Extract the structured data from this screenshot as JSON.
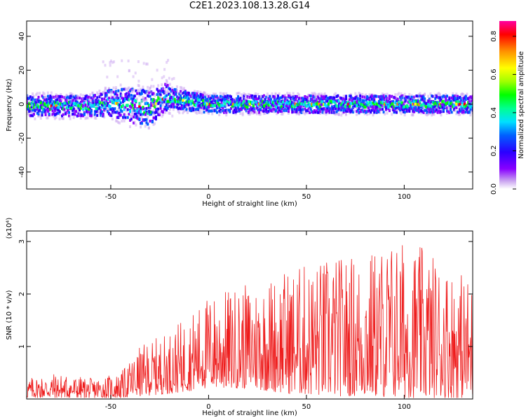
{
  "title": "C2E1.2023.108.13.28.G14",
  "chart_data": [
    {
      "type": "heatmap",
      "xlabel": "Height of straight line (km)",
      "ylabel": "Frequency (Hz)",
      "xlim": [
        -93,
        135
      ],
      "ylim": [
        -50,
        49
      ],
      "x_ticks": [
        -50,
        0,
        50,
        100
      ],
      "y_ticks": [
        -40,
        -20,
        0,
        20,
        40
      ],
      "colorbar": {
        "label": "Normalized spectral amplitude",
        "range": [
          0.0,
          0.88
        ],
        "ticks": [
          0.0,
          0.2,
          0.4,
          0.6,
          0.8
        ],
        "tick_labels": [
          "0.0",
          "0.2",
          "0.4",
          "0.6",
          "0.8"
        ],
        "colors": [
          "#ffffff",
          "#c8a0f0",
          "#8800ff",
          "#2a00ff",
          "#0060ff",
          "#00e0ff",
          "#00ff90",
          "#00ff00",
          "#a0ff00",
          "#ffff00",
          "#ff9000",
          "#ff0000",
          "#ff00a0"
        ]
      },
      "band": {
        "center_freq_hz": 0,
        "typical_halfwidth_hz": 5,
        "points": [
          {
            "x": -90,
            "center": -1,
            "halfwidth": 6
          },
          {
            "x": -60,
            "center": -1,
            "halfwidth": 6
          },
          {
            "x": -50,
            "center": 1,
            "halfwidth": 8
          },
          {
            "x": -40,
            "center": -1,
            "halfwidth": 10
          },
          {
            "x": -30,
            "center": -2,
            "halfwidth": 10
          },
          {
            "x": -22,
            "center": 4,
            "halfwidth": 8
          },
          {
            "x": -18,
            "center": 3,
            "halfwidth": 6
          },
          {
            "x": 0,
            "center": 0,
            "halfwidth": 5
          },
          {
            "x": 50,
            "center": 0,
            "halfwidth": 5
          },
          {
            "x": 100,
            "center": 0,
            "halfwidth": 5
          },
          {
            "x": 135,
            "center": 0,
            "halfwidth": 5
          }
        ]
      }
    },
    {
      "type": "line",
      "xlabel": "Height of straight line (km)",
      "ylabel": "SNR (10 * v/v)",
      "y_multiplier": "(x10⁴)",
      "xlim": [
        -93,
        135
      ],
      "ylim": [
        0,
        3.2
      ],
      "x_ticks": [
        -50,
        0,
        50,
        100
      ],
      "y_ticks": [
        1,
        2,
        3
      ],
      "color": "#ee1c1c",
      "envelope": [
        {
          "x": -93,
          "low": 0.02,
          "high": 0.4
        },
        {
          "x": -80,
          "low": 0.02,
          "high": 0.5
        },
        {
          "x": -60,
          "low": 0.02,
          "high": 0.4
        },
        {
          "x": -45,
          "low": 0.02,
          "high": 0.5
        },
        {
          "x": -35,
          "low": 0.05,
          "high": 1.0
        },
        {
          "x": -20,
          "low": 0.1,
          "high": 1.3
        },
        {
          "x": -10,
          "low": 0.15,
          "high": 1.6
        },
        {
          "x": 0,
          "low": 0.2,
          "high": 2.0
        },
        {
          "x": 20,
          "low": 0.2,
          "high": 2.2
        },
        {
          "x": 40,
          "low": 0.1,
          "high": 2.5
        },
        {
          "x": 60,
          "low": 0.05,
          "high": 2.7
        },
        {
          "x": 80,
          "low": 0.05,
          "high": 2.8
        },
        {
          "x": 95,
          "low": 0.02,
          "high": 3.1
        },
        {
          "x": 110,
          "low": 0.02,
          "high": 2.9
        },
        {
          "x": 135,
          "low": 0.02,
          "high": 2.3
        }
      ]
    }
  ]
}
